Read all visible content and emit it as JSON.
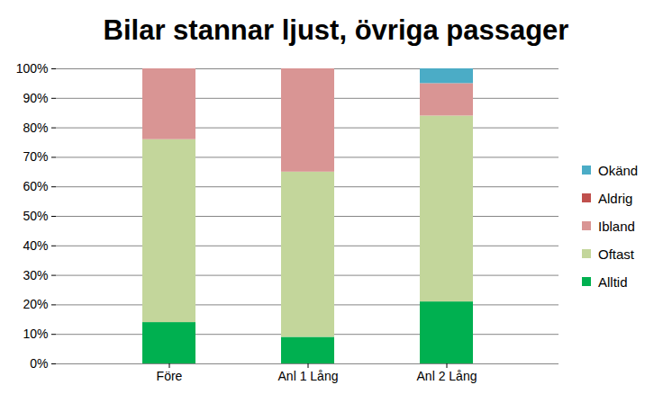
{
  "chart_data": {
    "type": "bar",
    "title": "Bilar stannar ljust, övriga passager",
    "categories": [
      "Före",
      "Anl 1 Lång",
      "Anl 2 Lång"
    ],
    "series": [
      {
        "name": "Alltid",
        "color": "#00b050",
        "values": [
          14,
          9,
          21
        ]
      },
      {
        "name": "Oftast",
        "color": "#c3d69b",
        "values": [
          62,
          56,
          63
        ]
      },
      {
        "name": "Ibland",
        "color": "#d99594",
        "values": [
          24,
          35,
          11
        ]
      },
      {
        "name": "Aldrig",
        "color": "#c0504d",
        "values": [
          0,
          0,
          0
        ]
      },
      {
        "name": "Okänd",
        "color": "#4bacc6",
        "values": [
          0,
          0,
          5
        ]
      }
    ],
    "stacked": true,
    "ylim": [
      0,
      100
    ],
    "yticks": [
      {
        "value": 0,
        "label": "0%"
      },
      {
        "value": 10,
        "label": "10%"
      },
      {
        "value": 20,
        "label": "20%"
      },
      {
        "value": 30,
        "label": "30%"
      },
      {
        "value": 40,
        "label": "40%"
      },
      {
        "value": 50,
        "label": "50%"
      },
      {
        "value": 60,
        "label": "60%"
      },
      {
        "value": 70,
        "label": "70%"
      },
      {
        "value": 80,
        "label": "80%"
      },
      {
        "value": 90,
        "label": "90%"
      },
      {
        "value": 100,
        "label": "100%"
      }
    ],
    "grid": true,
    "legend": "right"
  }
}
